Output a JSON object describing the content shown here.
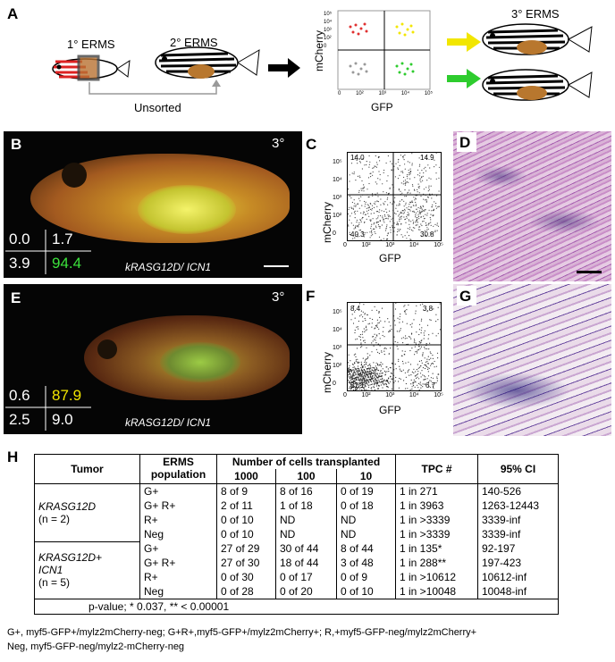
{
  "labels": {
    "A": "A",
    "B": "B",
    "C": "C",
    "D": "D",
    "E": "E",
    "F": "F",
    "G": "G",
    "H": "H"
  },
  "panelA": {
    "primary": "1° ERMS",
    "secondary": "2° ERMS",
    "tertiary": "3° ERMS",
    "unsorted": "Unsorted",
    "ylabel": "mCherry",
    "xlabel": "GFP",
    "yticks": [
      "10⁵",
      "10⁴",
      "10³",
      "10²",
      "0"
    ],
    "xticks": [
      "0",
      "10²",
      "10³",
      "10⁴",
      "10⁵"
    ]
  },
  "panelB": {
    "stage": "3°",
    "q_tl": "0.0",
    "q_tr": "1.7",
    "q_bl": "3.9",
    "q_br": "94.4",
    "genotype": "kRASG12D/ ICN1"
  },
  "panelE": {
    "stage": "3°",
    "q_tl": "0.6",
    "q_tr": "87.9",
    "q_bl": "2.5",
    "q_br": "9.0",
    "genotype": "kRASG12D/ ICN1"
  },
  "panelC": {
    "ylabel": "mCherry",
    "xlabel": "GFP",
    "q_tl": "14.0",
    "q_tr": "14.9",
    "q_bl": "40.3",
    "q_br": "30.8",
    "yticks": [
      "10⁵",
      "10⁴",
      "10³",
      "10²",
      "0"
    ],
    "xticks": [
      "0",
      "10²",
      "10³",
      "10⁴",
      "10⁵"
    ]
  },
  "panelF": {
    "ylabel": "mCherry",
    "xlabel": "GFP",
    "q_tl": "8.4",
    "q_tr": "3.8",
    "q_bl": "81.1",
    "q_br": "6.7",
    "yticks": [
      "10⁵",
      "10⁴",
      "10³",
      "10²",
      "0"
    ],
    "xticks": [
      "0",
      "10²",
      "10³",
      "10⁴",
      "10⁵"
    ]
  },
  "colors": {
    "green": "#2ecc2e",
    "yellow": "#f2e600",
    "red": "#e03030"
  },
  "table": {
    "h_tumor": "Tumor",
    "h_population": "ERMS population",
    "h_cells": "Number of cells transplanted",
    "h_1000": "1000",
    "h_100": "100",
    "h_10": "10",
    "h_tpc": "TPC #",
    "h_ci": "95% CI",
    "g1_name": "KRASG12D",
    "g1_n": "(n = 2)",
    "g2_name": "KRASG12D+",
    "g2_name2": "ICN1",
    "g2_n": "(n = 5)",
    "g1_rows": [
      {
        "pop": "G+",
        "c1000": "8 of 9",
        "c100": "8 of 16",
        "c10": "0 of 19",
        "tpc": "1 in 271",
        "ci": "140-526"
      },
      {
        "pop": "G+ R+",
        "c1000": "2 of 11",
        "c100": "1 of 18",
        "c10": "0 of 18",
        "tpc": "1 in 3963",
        "ci": "1263-12443"
      },
      {
        "pop": "R+",
        "c1000": "0 of 10",
        "c100": "ND",
        "c10": "ND",
        "tpc": "1 in >3339",
        "ci": "3339-inf"
      },
      {
        "pop": "Neg",
        "c1000": "0 of 10",
        "c100": "ND",
        "c10": "ND",
        "tpc": "1 in >3339",
        "ci": "3339-inf"
      }
    ],
    "g2_rows": [
      {
        "pop": "G+",
        "c1000": "27 of 29",
        "c100": "30 of 44",
        "c10": "8 of 44",
        "tpc": "1 in 135*",
        "ci": "92-197"
      },
      {
        "pop": "G+ R+",
        "c1000": "27 of 30",
        "c100": "18 of 44",
        "c10": "3 of 48",
        "tpc": "1 in 288**",
        "ci": "197-423"
      },
      {
        "pop": "R+",
        "c1000": "0 of 30",
        "c100": "0 of 17",
        "c10": "0 of 9",
        "tpc": "1 in >10612",
        "ci": "10612-inf"
      },
      {
        "pop": "Neg",
        "c1000": "0 of 28",
        "c100": "0 of 20",
        "c10": "0 of 10",
        "tpc": "1 in >10048",
        "ci": "10048-inf"
      }
    ],
    "pvalue": "p-value; * 0.037, ** < 0.00001"
  },
  "footnote1": "G+, myf5-GFP+/mylz2mCherry-neg; G+R+,myf5-GFP+/mylz2mCherry+; R,+myf5-GFP-neg/mylz2mCherry+",
  "footnote2": "Neg, myf5-GFP-neg/mylz2-mCherry-neg"
}
